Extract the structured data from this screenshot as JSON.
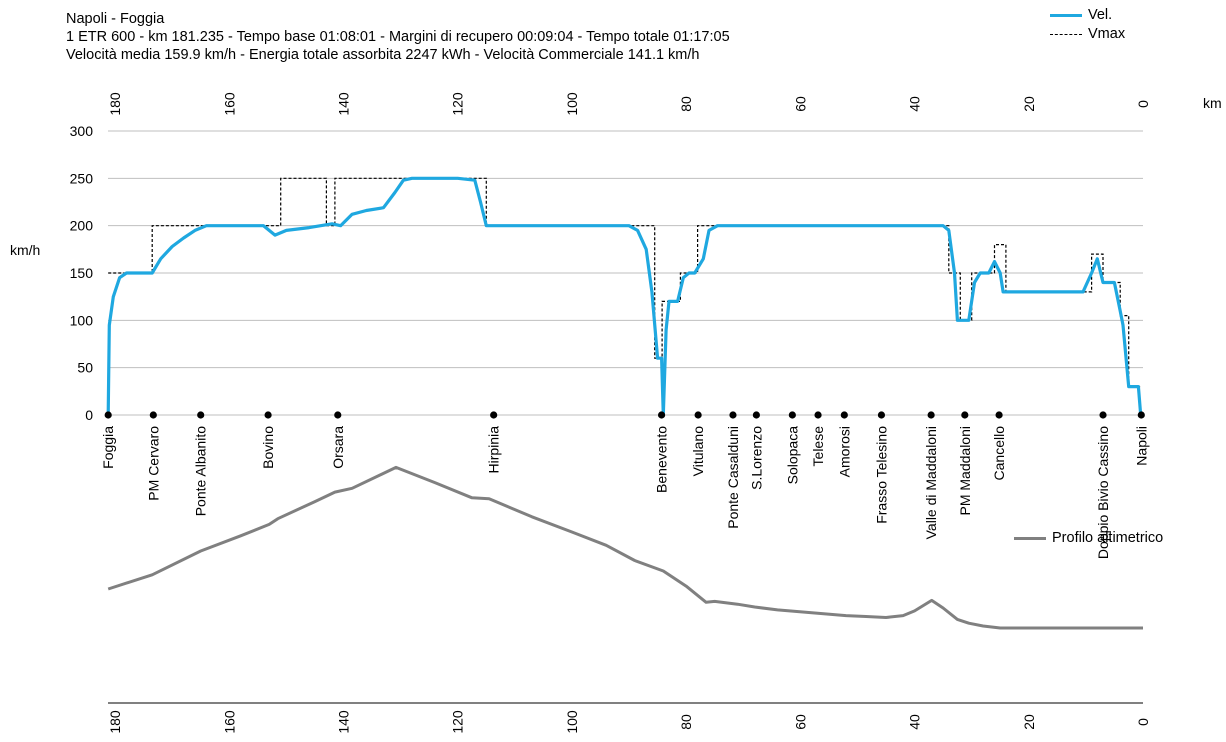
{
  "header": {
    "line1": "Napoli - Foggia",
    "line2": "1 ETR 600   -  km 181.235  -  Tempo base 01:08:01  -  Margini di recupero 00:09:04  -  Tempo totale 01:17:05",
    "line3": "Velocità media 159.9 km/h   -  Energia totale assorbita 2247 kWh  -  Velocità Commerciale 141.1 km/h"
  },
  "colors": {
    "vel": "#1fa8e0",
    "vmax": "#000000",
    "profile": "#808080",
    "grid": "#bfbfbf"
  },
  "chart_data": [
    {
      "type": "line",
      "xlabel": "km",
      "ylabel": "km/h",
      "xlim": [
        181.235,
        0
      ],
      "ylim": [
        0,
        300
      ],
      "x_ticks": [
        "180",
        "160",
        "140",
        "120",
        "100",
        "80",
        "60",
        "40",
        "20",
        "0"
      ],
      "y_ticks": [
        "300",
        "250",
        "200",
        "150",
        "100",
        "50",
        "0"
      ],
      "grid": "horizontal",
      "legend": "top-right",
      "series": [
        {
          "name": "Vel.",
          "x": [
            181.2,
            181.0,
            180.3,
            179.2,
            178.0,
            176.0,
            173.5,
            172.0,
            170.0,
            168.0,
            166.0,
            164.0,
            158.0,
            154.0,
            152.0,
            150.0,
            146.0,
            142.0,
            140.5,
            138.5,
            136.0,
            133.0,
            131.0,
            129.5,
            128.0,
            120.0,
            117.0,
            116.0,
            115.0,
            90.0,
            88.5,
            87.0,
            86.0,
            85.0,
            84.3,
            84.0,
            83.5,
            83.0,
            82.5,
            81.5,
            80.5,
            79.5,
            78.5,
            77.0,
            76.0,
            74.5,
            73.0,
            35.0,
            34.0,
            33.0,
            32.5,
            31.5,
            30.5,
            29.5,
            28.5,
            27.0,
            26.0,
            25.0,
            24.5,
            23.5,
            10.5,
            9.0,
            8.0,
            7.0,
            5.0,
            4.0,
            3.5,
            2.5,
            2.0,
            0.8,
            0.4
          ],
          "y": [
            0,
            95,
            125,
            145,
            150,
            150,
            150,
            165,
            178,
            187,
            195,
            200,
            200,
            200,
            190,
            195,
            198,
            202,
            200,
            212,
            216,
            219,
            235,
            248,
            250,
            250,
            248,
            225,
            200,
            200,
            195,
            175,
            130,
            60,
            60,
            0,
            90,
            120,
            120,
            120,
            145,
            150,
            150,
            165,
            195,
            200,
            200,
            200,
            195,
            150,
            100,
            100,
            100,
            140,
            150,
            150,
            162,
            150,
            130,
            130,
            130,
            150,
            165,
            140,
            140,
            110,
            95,
            30,
            30,
            30,
            0
          ]
        },
        {
          "name": "Vmax",
          "x": [
            181.2,
            173.5,
            173.5,
            151.0,
            151.0,
            143.0,
            143.0,
            141.5,
            141.5,
            131.0,
            131.0,
            115.0,
            115.0,
            85.5,
            85.5,
            84.2,
            84.2,
            83.2,
            83.2,
            81.0,
            81.0,
            78.0,
            78.0,
            34.0,
            34.0,
            32.0,
            32.0,
            30.0,
            30.0,
            26.0,
            26.0,
            24.0,
            24.0,
            9.0,
            9.0,
            7.0,
            7.0,
            4.0,
            4.0,
            2.5,
            2.5,
            0.5
          ],
          "y": [
            150,
            150,
            200,
            200,
            250,
            250,
            200,
            200,
            250,
            250,
            250,
            250,
            200,
            200,
            60,
            60,
            120,
            120,
            120,
            120,
            150,
            150,
            200,
            200,
            150,
            150,
            100,
            100,
            150,
            150,
            180,
            180,
            130,
            130,
            170,
            170,
            140,
            140,
            105,
            105,
            30,
            30
          ]
        }
      ],
      "stations": [
        {
          "name": "Foggia",
          "km": 181.2
        },
        {
          "name": "PM Cervaro",
          "km": 173.3
        },
        {
          "name": "Ponte Albanito",
          "km": 165.0
        },
        {
          "name": "Bovino",
          "km": 153.2
        },
        {
          "name": "Orsara",
          "km": 141.0
        },
        {
          "name": "Hirpinia",
          "km": 113.7
        },
        {
          "name": "Benevento",
          "km": 84.3
        },
        {
          "name": "Vitulano",
          "km": 77.9
        },
        {
          "name": "Ponte Casalduni",
          "km": 71.8
        },
        {
          "name": "S.Lorenzo",
          "km": 67.7
        },
        {
          "name": "Solopaca",
          "km": 61.4
        },
        {
          "name": "Telese",
          "km": 56.9
        },
        {
          "name": "Amorosi",
          "km": 52.3
        },
        {
          "name": "Frasso Telesino",
          "km": 45.8
        },
        {
          "name": "Valle di Maddaloni",
          "km": 37.1
        },
        {
          "name": "PM Maddaloni",
          "km": 31.2
        },
        {
          "name": "Cancello",
          "km": 25.2
        },
        {
          "name": "Doppio Bivio Cassino",
          "km": 7.0
        },
        {
          "name": "Napoli",
          "km": 0.3
        }
      ]
    },
    {
      "type": "line",
      "xlim": [
        181.235,
        0
      ],
      "x_ticks": [
        "180",
        "160",
        "140",
        "120",
        "100",
        "80",
        "60",
        "40",
        "20",
        "0"
      ],
      "legend": "top-right",
      "series": [
        {
          "name": "Profilo altimetrico",
          "x": [
            181.2,
            173.5,
            165.0,
            158.0,
            153.0,
            151.5,
            145.0,
            141.5,
            138.5,
            130.8,
            124.0,
            117.5,
            114.5,
            107.0,
            100.0,
            94.0,
            89.0,
            84.0,
            80.0,
            76.5,
            75.0,
            71.0,
            68.0,
            64.0,
            58.0,
            52.0,
            48.5,
            45.0,
            42.0,
            40.0,
            37.0,
            35.0,
            32.5,
            30.5,
            28.0,
            25.0,
            20.0,
            10.0,
            0.0
          ],
          "y": [
            120,
            135,
            160,
            176,
            188,
            194,
            212,
            222,
            226,
            248,
            232,
            216,
            215,
            196,
            180,
            166,
            150,
            139,
            123,
            106,
            107,
            104,
            101,
            98,
            95,
            92,
            91,
            90,
            92,
            97,
            108,
            100,
            88,
            84,
            81,
            79,
            79,
            79,
            79
          ]
        }
      ]
    }
  ]
}
